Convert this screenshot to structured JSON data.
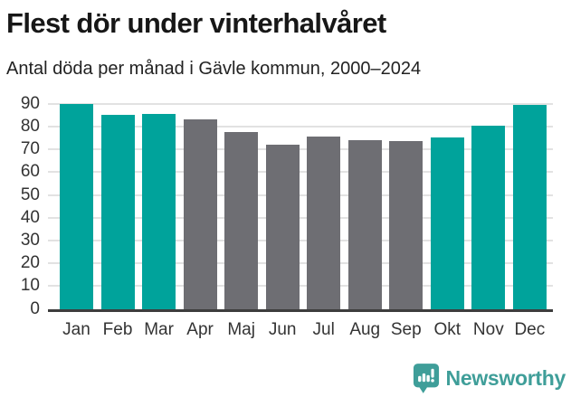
{
  "header": {
    "title": "Flest dör under vinterhalvåret",
    "subtitle": "Antal döda per månad i Gävle kommun, 2000–2024"
  },
  "chart_data": {
    "type": "bar",
    "title": "Flest dör under vinterhalvåret",
    "subtitle": "Antal döda per månad i Gävle kommun, 2000–2024",
    "categories": [
      "Jan",
      "Feb",
      "Mar",
      "Apr",
      "Maj",
      "Jun",
      "Jul",
      "Aug",
      "Sep",
      "Okt",
      "Nov",
      "Dec"
    ],
    "values": [
      90,
      85,
      85.5,
      83,
      77.5,
      72,
      75.5,
      74,
      73.5,
      75,
      80.5,
      89.5
    ],
    "bar_colors": [
      "#00a39b",
      "#00a39b",
      "#00a39b",
      "#6e6e73",
      "#6e6e73",
      "#6e6e73",
      "#6e6e73",
      "#6e6e73",
      "#6e6e73",
      "#00a39b",
      "#00a39b",
      "#00a39b"
    ],
    "highlight_color": "#00a39b",
    "muted_color": "#6e6e73",
    "xlabel": "",
    "ylabel": "",
    "ylim": [
      0,
      90
    ],
    "yticks": [
      0,
      10,
      20,
      30,
      40,
      50,
      60,
      70,
      80,
      90
    ],
    "grid": true,
    "legend_position": "none"
  },
  "footer": {
    "brand": "Newsworthy",
    "logo_icon": "newsworthy-chart-bubble-icon",
    "brand_color": "#3f9e99"
  },
  "colors": {
    "winter_teal": "#00a39b",
    "summer_gray": "#6e6e73",
    "gridline": "#e2e2e2",
    "axis_line": "#3d3d3d",
    "title_text": "#171717",
    "tick_text": "#333333",
    "background": "#ffffff"
  }
}
